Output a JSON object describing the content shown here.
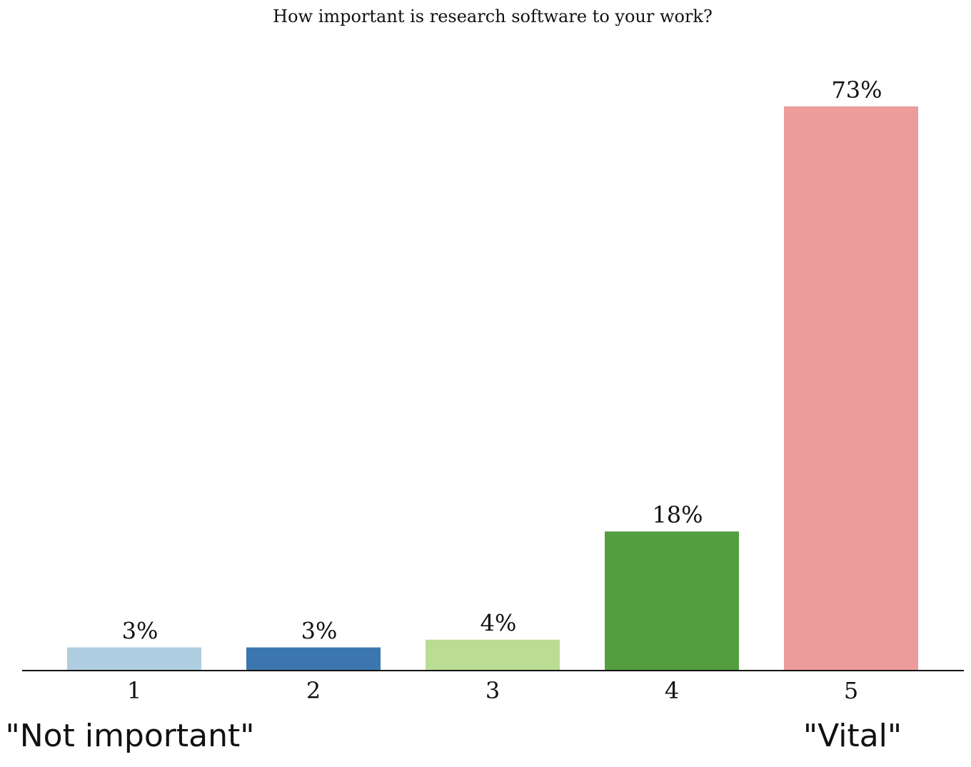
{
  "chart_data": {
    "type": "bar",
    "title": "How important is research software to your work?",
    "categories": [
      "1",
      "2",
      "3",
      "4",
      "5"
    ],
    "values": [
      3,
      3,
      4,
      18,
      73
    ],
    "data_labels": [
      "3%",
      "3%",
      "4%",
      "18%",
      "73%"
    ],
    "colors": [
      "#aecde1",
      "#3b76af",
      "#bbdd93",
      "#549e3f",
      "#ec9c9a"
    ],
    "ylim": [
      0,
      73
    ],
    "xlabel": "",
    "ylabel": "",
    "grid": false,
    "legend": "none",
    "scale_labels": {
      "low": "\"Not important\"",
      "high": "\"Vital\""
    }
  }
}
